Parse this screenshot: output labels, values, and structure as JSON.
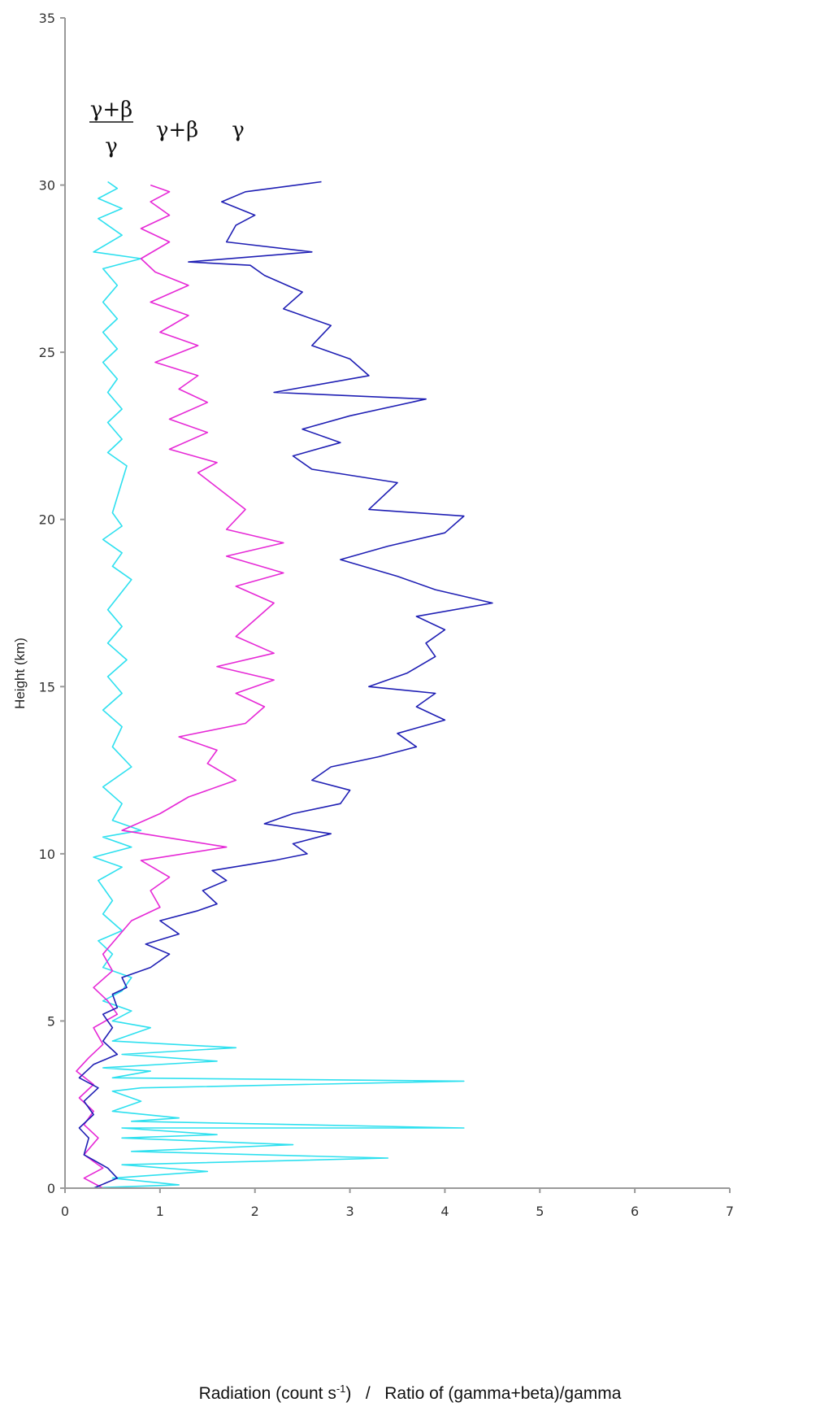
{
  "chart_data": {
    "type": "line",
    "orientation": "vertical-profile",
    "ylabel": "Height (km)",
    "xlabel": {
      "part1": "Radiation (count s",
      "exponent": "-1",
      "part2": ")   /   Ratio of (gamma+beta)/gamma"
    },
    "xlim": [
      0,
      7
    ],
    "ylim": [
      0,
      35
    ],
    "x_ticks": [
      "0",
      "1",
      "2",
      "3",
      "4",
      "5",
      "6",
      "7"
    ],
    "y_ticks": [
      "0",
      "5",
      "10",
      "15",
      "20",
      "25",
      "30",
      "35"
    ],
    "grid": false,
    "annotations": {
      "ratio_numerator": "γ+β",
      "ratio_denominator": "γ",
      "gamma_beta": "γ+β",
      "gamma": "γ"
    },
    "series": [
      {
        "name": "γ",
        "color": "#1f1fb4",
        "points": [
          [
            0.3,
            0.0
          ],
          [
            0.55,
            0.3
          ],
          [
            0.45,
            0.6
          ],
          [
            0.2,
            1.0
          ],
          [
            0.25,
            1.5
          ],
          [
            0.15,
            1.8
          ],
          [
            0.3,
            2.2
          ],
          [
            0.2,
            2.6
          ],
          [
            0.35,
            3.0
          ],
          [
            0.15,
            3.3
          ],
          [
            0.3,
            3.7
          ],
          [
            0.55,
            4.0
          ],
          [
            0.4,
            4.4
          ],
          [
            0.5,
            4.8
          ],
          [
            0.4,
            5.2
          ],
          [
            0.55,
            5.4
          ],
          [
            0.5,
            5.8
          ],
          [
            0.65,
            6.0
          ],
          [
            0.6,
            6.3
          ],
          [
            0.9,
            6.6
          ],
          [
            1.1,
            7.0
          ],
          [
            0.85,
            7.3
          ],
          [
            1.2,
            7.6
          ],
          [
            1.0,
            8.0
          ],
          [
            1.4,
            8.3
          ],
          [
            1.6,
            8.5
          ],
          [
            1.45,
            8.9
          ],
          [
            1.7,
            9.2
          ],
          [
            1.55,
            9.5
          ],
          [
            2.2,
            9.8
          ],
          [
            2.55,
            10.0
          ],
          [
            2.4,
            10.3
          ],
          [
            2.8,
            10.6
          ],
          [
            2.1,
            10.9
          ],
          [
            2.4,
            11.2
          ],
          [
            2.9,
            11.5
          ],
          [
            3.0,
            11.9
          ],
          [
            2.6,
            12.2
          ],
          [
            2.8,
            12.6
          ],
          [
            3.3,
            12.9
          ],
          [
            3.7,
            13.2
          ],
          [
            3.5,
            13.6
          ],
          [
            4.0,
            14.0
          ],
          [
            3.7,
            14.4
          ],
          [
            3.9,
            14.8
          ],
          [
            3.2,
            15.0
          ],
          [
            3.6,
            15.4
          ],
          [
            3.9,
            15.9
          ],
          [
            3.8,
            16.3
          ],
          [
            4.0,
            16.7
          ],
          [
            3.7,
            17.1
          ],
          [
            4.5,
            17.5
          ],
          [
            3.9,
            17.9
          ],
          [
            3.5,
            18.3
          ],
          [
            2.9,
            18.8
          ],
          [
            3.4,
            19.2
          ],
          [
            4.0,
            19.6
          ],
          [
            4.2,
            20.1
          ],
          [
            3.2,
            20.3
          ],
          [
            3.5,
            21.1
          ],
          [
            2.6,
            21.5
          ],
          [
            2.4,
            21.9
          ],
          [
            2.9,
            22.3
          ],
          [
            2.5,
            22.7
          ],
          [
            3.0,
            23.1
          ],
          [
            3.8,
            23.6
          ],
          [
            2.2,
            23.8
          ],
          [
            3.2,
            24.3
          ],
          [
            3.0,
            24.8
          ],
          [
            2.6,
            25.2
          ],
          [
            2.8,
            25.8
          ],
          [
            2.3,
            26.3
          ],
          [
            2.5,
            26.8
          ],
          [
            2.1,
            27.3
          ],
          [
            1.95,
            27.6
          ],
          [
            1.3,
            27.7
          ],
          [
            2.6,
            28.0
          ],
          [
            1.7,
            28.3
          ],
          [
            1.8,
            28.8
          ],
          [
            2.0,
            29.1
          ],
          [
            1.65,
            29.5
          ],
          [
            1.9,
            29.8
          ],
          [
            2.7,
            30.1
          ]
        ]
      },
      {
        "name": "γ+β",
        "color": "#e629d6",
        "points": [
          [
            0.4,
            0.0
          ],
          [
            0.2,
            0.3
          ],
          [
            0.4,
            0.6
          ],
          [
            0.2,
            1.0
          ],
          [
            0.35,
            1.5
          ],
          [
            0.2,
            1.9
          ],
          [
            0.3,
            2.3
          ],
          [
            0.15,
            2.7
          ],
          [
            0.3,
            3.1
          ],
          [
            0.12,
            3.5
          ],
          [
            0.25,
            3.9
          ],
          [
            0.4,
            4.3
          ],
          [
            0.3,
            4.8
          ],
          [
            0.55,
            5.2
          ],
          [
            0.45,
            5.6
          ],
          [
            0.3,
            6.0
          ],
          [
            0.5,
            6.5
          ],
          [
            0.4,
            7.0
          ],
          [
            0.55,
            7.5
          ],
          [
            0.7,
            8.0
          ],
          [
            1.0,
            8.4
          ],
          [
            0.9,
            8.9
          ],
          [
            1.1,
            9.3
          ],
          [
            0.8,
            9.8
          ],
          [
            1.7,
            10.2
          ],
          [
            0.6,
            10.7
          ],
          [
            1.0,
            11.2
          ],
          [
            1.3,
            11.7
          ],
          [
            1.8,
            12.2
          ],
          [
            1.5,
            12.7
          ],
          [
            1.6,
            13.1
          ],
          [
            1.2,
            13.5
          ],
          [
            1.9,
            13.9
          ],
          [
            2.1,
            14.4
          ],
          [
            1.8,
            14.8
          ],
          [
            2.2,
            15.2
          ],
          [
            1.6,
            15.6
          ],
          [
            2.2,
            16.0
          ],
          [
            1.8,
            16.5
          ],
          [
            2.0,
            17.0
          ],
          [
            2.2,
            17.5
          ],
          [
            1.8,
            18.0
          ],
          [
            2.3,
            18.4
          ],
          [
            1.7,
            18.9
          ],
          [
            2.3,
            19.3
          ],
          [
            1.7,
            19.7
          ],
          [
            1.9,
            20.3
          ],
          [
            1.4,
            21.4
          ],
          [
            1.6,
            21.7
          ],
          [
            1.1,
            22.1
          ],
          [
            1.5,
            22.6
          ],
          [
            1.1,
            23.0
          ],
          [
            1.5,
            23.5
          ],
          [
            1.2,
            23.9
          ],
          [
            1.4,
            24.3
          ],
          [
            0.95,
            24.7
          ],
          [
            1.4,
            25.2
          ],
          [
            1.0,
            25.6
          ],
          [
            1.3,
            26.1
          ],
          [
            0.9,
            26.5
          ],
          [
            1.3,
            27.0
          ],
          [
            0.95,
            27.4
          ],
          [
            0.8,
            27.8
          ],
          [
            1.1,
            28.3
          ],
          [
            0.8,
            28.7
          ],
          [
            1.1,
            29.1
          ],
          [
            0.9,
            29.5
          ],
          [
            1.1,
            29.8
          ],
          [
            0.9,
            30.0
          ]
        ]
      },
      {
        "name": "(γ+β)/γ",
        "color": "#2ee0ef",
        "points": [
          [
            0.2,
            0.0
          ],
          [
            1.2,
            0.1
          ],
          [
            0.5,
            0.3
          ],
          [
            1.5,
            0.5
          ],
          [
            0.6,
            0.7
          ],
          [
            3.4,
            0.9
          ],
          [
            0.7,
            1.1
          ],
          [
            2.4,
            1.3
          ],
          [
            0.6,
            1.5
          ],
          [
            1.6,
            1.6
          ],
          [
            0.6,
            1.8
          ],
          [
            4.2,
            1.8
          ],
          [
            0.7,
            2.0
          ],
          [
            1.2,
            2.1
          ],
          [
            0.5,
            2.3
          ],
          [
            0.8,
            2.6
          ],
          [
            0.5,
            2.9
          ],
          [
            0.8,
            3.0
          ],
          [
            4.2,
            3.2
          ],
          [
            0.5,
            3.3
          ],
          [
            0.9,
            3.5
          ],
          [
            0.4,
            3.6
          ],
          [
            1.6,
            3.8
          ],
          [
            0.6,
            4.0
          ],
          [
            1.8,
            4.2
          ],
          [
            0.5,
            4.4
          ],
          [
            0.9,
            4.8
          ],
          [
            0.5,
            5.0
          ],
          [
            0.7,
            5.3
          ],
          [
            0.4,
            5.6
          ],
          [
            0.6,
            5.9
          ],
          [
            0.7,
            6.3
          ],
          [
            0.4,
            6.6
          ],
          [
            0.5,
            7.0
          ],
          [
            0.35,
            7.4
          ],
          [
            0.6,
            7.7
          ],
          [
            0.4,
            8.2
          ],
          [
            0.5,
            8.6
          ],
          [
            0.35,
            9.2
          ],
          [
            0.6,
            9.6
          ],
          [
            0.3,
            9.9
          ],
          [
            0.7,
            10.2
          ],
          [
            0.4,
            10.5
          ],
          [
            0.8,
            10.7
          ],
          [
            0.5,
            11.0
          ],
          [
            0.6,
            11.5
          ],
          [
            0.4,
            12.0
          ],
          [
            0.7,
            12.6
          ],
          [
            0.5,
            13.2
          ],
          [
            0.6,
            13.8
          ],
          [
            0.4,
            14.3
          ],
          [
            0.6,
            14.8
          ],
          [
            0.45,
            15.3
          ],
          [
            0.65,
            15.8
          ],
          [
            0.45,
            16.3
          ],
          [
            0.6,
            16.8
          ],
          [
            0.45,
            17.3
          ],
          [
            0.7,
            18.2
          ],
          [
            0.5,
            18.6
          ],
          [
            0.6,
            19.0
          ],
          [
            0.4,
            19.4
          ],
          [
            0.6,
            19.8
          ],
          [
            0.5,
            20.2
          ],
          [
            0.65,
            21.6
          ],
          [
            0.45,
            22.0
          ],
          [
            0.6,
            22.4
          ],
          [
            0.45,
            22.9
          ],
          [
            0.6,
            23.3
          ],
          [
            0.45,
            23.8
          ],
          [
            0.55,
            24.2
          ],
          [
            0.4,
            24.7
          ],
          [
            0.55,
            25.1
          ],
          [
            0.4,
            25.6
          ],
          [
            0.55,
            26.0
          ],
          [
            0.4,
            26.5
          ],
          [
            0.55,
            27.0
          ],
          [
            0.4,
            27.5
          ],
          [
            0.8,
            27.8
          ],
          [
            0.3,
            28.0
          ],
          [
            0.6,
            28.5
          ],
          [
            0.35,
            29.0
          ],
          [
            0.6,
            29.3
          ],
          [
            0.35,
            29.6
          ],
          [
            0.55,
            29.9
          ],
          [
            0.45,
            30.1
          ]
        ]
      }
    ]
  }
}
